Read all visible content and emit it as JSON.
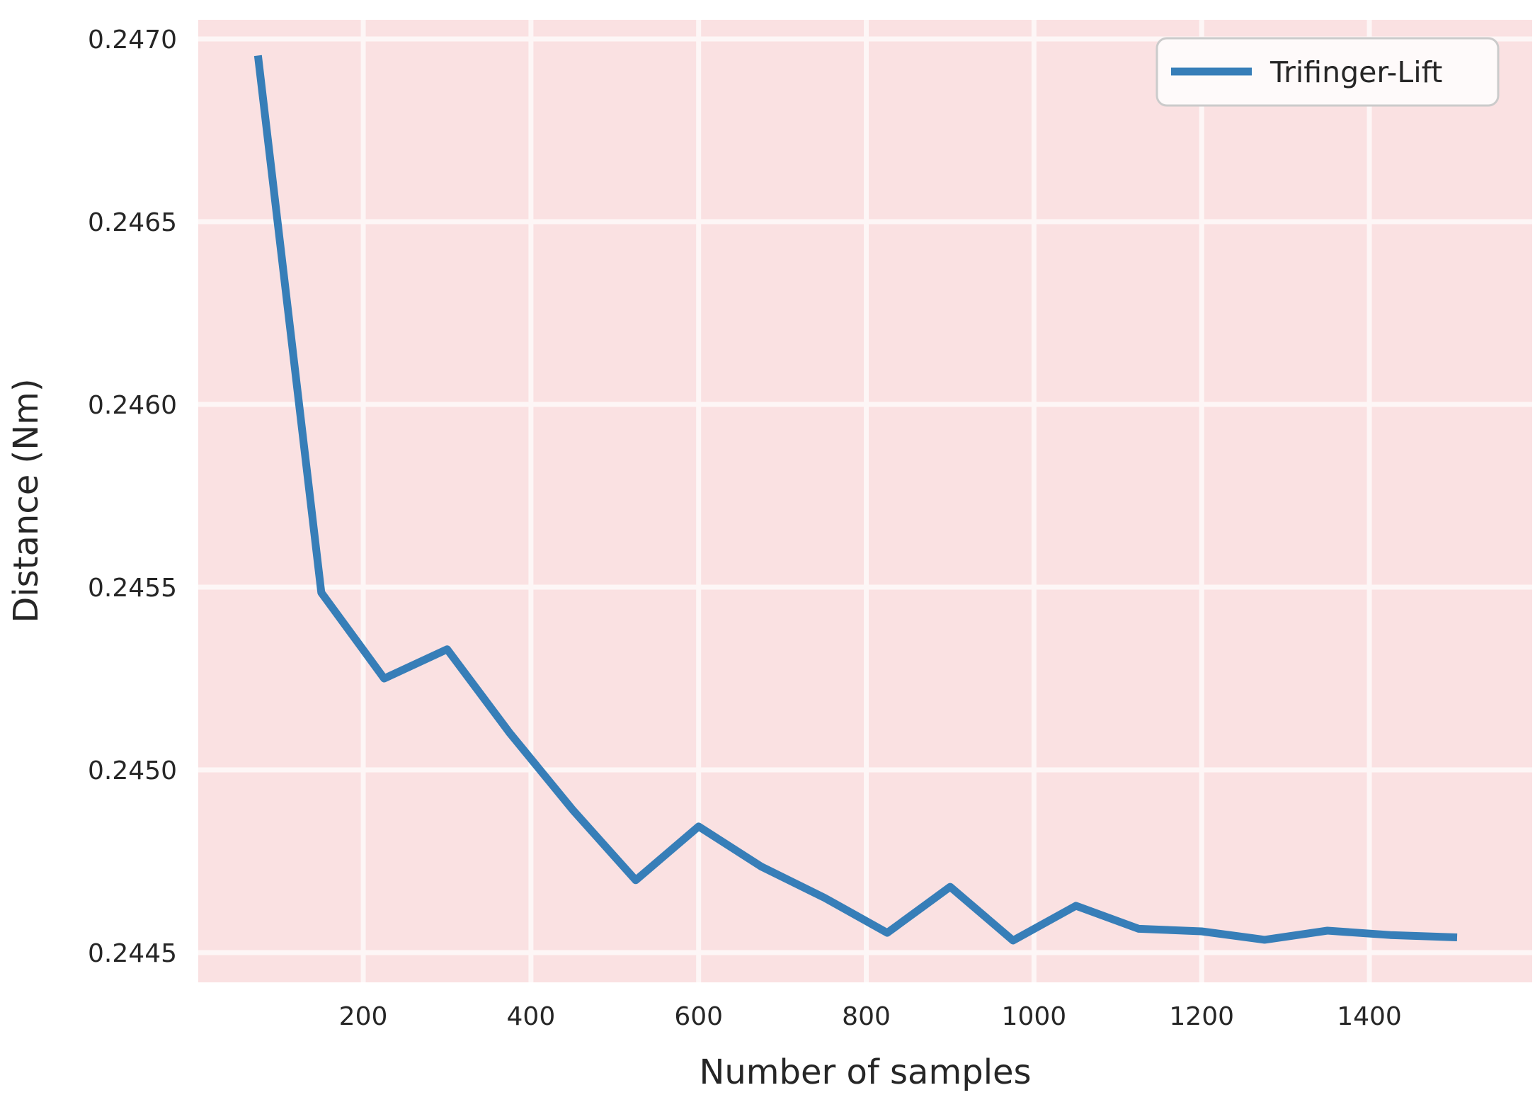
{
  "chart_data": {
    "type": "line",
    "title": "",
    "xlabel": "Number of samples",
    "ylabel": "Distance (Nm)",
    "grid": true,
    "legend": {
      "position": "upper right",
      "entries": [
        "Trifinger-Lift"
      ]
    },
    "xlim": [
      3.2,
      1594.2
    ],
    "ylim": [
      0.2444185,
      0.2470523
    ],
    "x_ticks": {
      "values": [
        200,
        400,
        600,
        800,
        1000,
        1200,
        1400
      ],
      "labels": [
        "200",
        "400",
        "600",
        "800",
        "1000",
        "1200",
        "1400"
      ]
    },
    "y_ticks": {
      "values": [
        0.2445,
        0.245,
        0.2455,
        0.246,
        0.2465,
        0.247
      ],
      "labels": [
        "0.2445",
        "0.2450",
        "0.2455",
        "0.2460",
        "0.2465",
        "0.2470"
      ]
    },
    "series": [
      {
        "name": "Trifinger-Lift",
        "color": "#377eb8",
        "x": [
          75,
          150,
          225,
          300,
          375,
          450,
          525,
          600,
          675,
          750,
          825,
          900,
          975,
          1050,
          1125,
          1200,
          1275,
          1350,
          1425,
          1500
        ],
        "y": [
          0.246944,
          0.245485,
          0.24525,
          0.24533,
          0.2451,
          0.24489,
          0.244698,
          0.244845,
          0.244735,
          0.24465,
          0.244554,
          0.24468,
          0.244533,
          0.244628,
          0.244565,
          0.244558,
          0.244535,
          0.24456,
          0.244548,
          0.244542
        ]
      }
    ],
    "colors": {
      "line": "#377eb8",
      "plot_background": "#fae1e2",
      "gridline": "#fdf6f6",
      "text": "#262626",
      "legend_background": "#fefafa",
      "legend_border": "#cbcbcb"
    }
  }
}
